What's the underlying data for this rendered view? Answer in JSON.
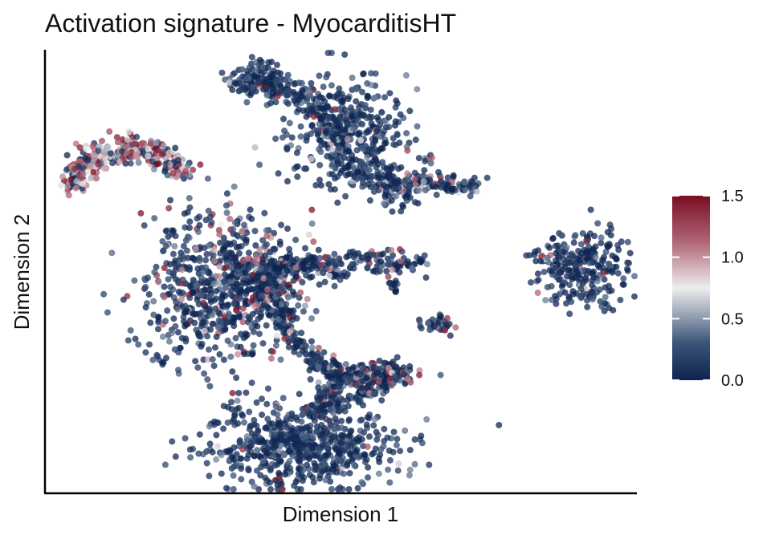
{
  "chart_data": {
    "type": "scatter",
    "title": "Activation signature - MyocarditisHT",
    "xlabel": "Dimension 1",
    "ylabel": "Dimension 2",
    "x_ticks": false,
    "y_ticks": false,
    "grid": false,
    "colorbar": {
      "position": "right",
      "min": 0.0,
      "max": 1.5,
      "ticks": [
        {
          "value": 0.0,
          "label": "0.0"
        },
        {
          "value": 0.5,
          "label": "0.5"
        },
        {
          "value": 1.0,
          "label": "1.0"
        },
        {
          "value": 1.5,
          "label": "1.5"
        }
      ],
      "colors": [
        "#0d2451",
        "#eeeeee",
        "#7a0d22"
      ]
    }
  }
}
